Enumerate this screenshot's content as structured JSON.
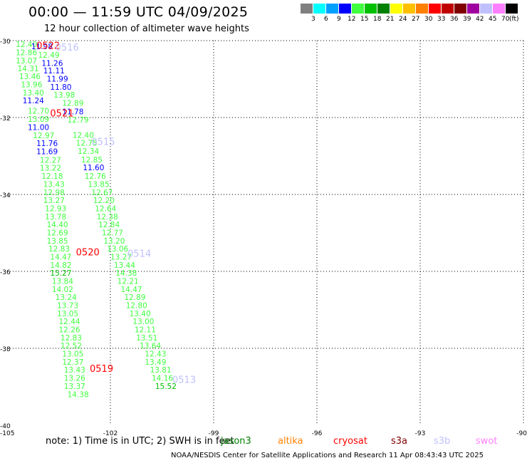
{
  "title": "00:00 — 11:59 UTC 04/09/2025",
  "subtitle": "12 hour collection of altimeter wave heights",
  "legend": {
    "unit": "(ft)",
    "swatches": [
      {
        "color": "#808080",
        "label": "3"
      },
      {
        "color": "#00ffff",
        "label": "6"
      },
      {
        "color": "#00a0ff",
        "label": "9"
      },
      {
        "color": "#0000ff",
        "label": "12"
      },
      {
        "color": "#40ff40",
        "label": "15"
      },
      {
        "color": "#00c000",
        "label": "18"
      },
      {
        "color": "#008000",
        "label": "21"
      },
      {
        "color": "#ffff00",
        "label": "24"
      },
      {
        "color": "#ffc000",
        "label": "27"
      },
      {
        "color": "#ff8000",
        "label": "30"
      },
      {
        "color": "#ff0000",
        "label": "33"
      },
      {
        "color": "#c00000",
        "label": "36"
      },
      {
        "color": "#800000",
        "label": "39"
      },
      {
        "color": "#a000a0",
        "label": "42"
      },
      {
        "color": "#c0c0ff",
        "label": "45"
      },
      {
        "color": "#ff80ff",
        "label": "70"
      },
      {
        "color": "#000000",
        "label": ""
      }
    ]
  },
  "axes": {
    "lon_min": -105,
    "lon_max": -90,
    "lat_min": -40,
    "lat_max": -30,
    "lon_ticks": [
      {
        "v": -105,
        "label": "-105"
      },
      {
        "v": -102,
        "label": "-102"
      },
      {
        "v": -99,
        "label": "-99"
      },
      {
        "v": -96,
        "label": "-96"
      },
      {
        "v": -93,
        "label": "-93"
      },
      {
        "v": -90,
        "label": "-90"
      }
    ],
    "lat_ticks": [
      {
        "v": -30,
        "label": "-30"
      },
      {
        "v": -32,
        "label": "-32"
      },
      {
        "v": -34,
        "label": "-34"
      },
      {
        "v": -36,
        "label": "-36"
      },
      {
        "v": -38,
        "label": "-38"
      },
      {
        "v": -40,
        "label": "-40"
      }
    ]
  },
  "points": [
    {
      "lon": -104.75,
      "lat": -30.09,
      "v": "12.40",
      "c": "#40ff40"
    },
    {
      "lon": -104.3,
      "lat": -30.15,
      "v": "11.98",
      "c": "#0000ff"
    },
    {
      "lon": -104.75,
      "lat": -30.31,
      "v": "12.86",
      "c": "#40ff40"
    },
    {
      "lon": -104.1,
      "lat": -30.37,
      "v": "12.49",
      "c": "#40ff40"
    },
    {
      "lon": -104.75,
      "lat": -30.52,
      "v": "13.07",
      "c": "#40ff40"
    },
    {
      "lon": -104.0,
      "lat": -30.58,
      "v": "11.26",
      "c": "#0000ff"
    },
    {
      "lon": -104.7,
      "lat": -30.72,
      "v": "14.31",
      "c": "#40ff40"
    },
    {
      "lon": -103.95,
      "lat": -30.78,
      "v": "11.11",
      "c": "#0000ff"
    },
    {
      "lon": -104.65,
      "lat": -30.93,
      "v": "13.46",
      "c": "#40ff40"
    },
    {
      "lon": -103.85,
      "lat": -30.99,
      "v": "11.99",
      "c": "#0000ff"
    },
    {
      "lon": -104.6,
      "lat": -31.14,
      "v": "13.96",
      "c": "#40ff40"
    },
    {
      "lon": -103.75,
      "lat": -31.2,
      "v": "11.80",
      "c": "#0000ff"
    },
    {
      "lon": -104.55,
      "lat": -31.35,
      "v": "13.40",
      "c": "#40ff40"
    },
    {
      "lon": -103.65,
      "lat": -31.41,
      "v": "13.98",
      "c": "#40ff40"
    },
    {
      "lon": -104.55,
      "lat": -31.56,
      "v": "11.24",
      "c": "#0000ff"
    },
    {
      "lon": -103.4,
      "lat": -31.62,
      "v": "12.89",
      "c": "#40ff40"
    },
    {
      "lon": -104.4,
      "lat": -31.82,
      "v": "12.70",
      "c": "#40ff40"
    },
    {
      "lon": -103.4,
      "lat": -31.84,
      "v": "11.78",
      "c": "#0000ff"
    },
    {
      "lon": -103.25,
      "lat": -32.06,
      "v": "12.79",
      "c": "#40ff40"
    },
    {
      "lon": -104.4,
      "lat": -32.04,
      "v": "13.09",
      "c": "#40ff40"
    },
    {
      "lon": -104.4,
      "lat": -32.25,
      "v": "11.00",
      "c": "#0000ff"
    },
    {
      "lon": -103.1,
      "lat": -32.45,
      "v": "12.40",
      "c": "#40ff40"
    },
    {
      "lon": -104.25,
      "lat": -32.46,
      "v": "12.97",
      "c": "#40ff40"
    },
    {
      "lon": -103.0,
      "lat": -32.66,
      "v": "12.75",
      "c": "#40ff40"
    },
    {
      "lon": -104.15,
      "lat": -32.67,
      "v": "11.76",
      "c": "#0000ff"
    },
    {
      "lon": -102.95,
      "lat": -32.87,
      "v": "12.34",
      "c": "#40ff40"
    },
    {
      "lon": -104.15,
      "lat": -32.88,
      "v": "11.69",
      "c": "#0000ff"
    },
    {
      "lon": -102.85,
      "lat": -33.09,
      "v": "12.85",
      "c": "#40ff40"
    },
    {
      "lon": -104.05,
      "lat": -33.1,
      "v": "12.27",
      "c": "#40ff40"
    },
    {
      "lon": -102.8,
      "lat": -33.3,
      "v": "11.60",
      "c": "#0000ff"
    },
    {
      "lon": -104.05,
      "lat": -33.31,
      "v": "13.22",
      "c": "#40ff40"
    },
    {
      "lon": -102.75,
      "lat": -33.52,
      "v": "12.76",
      "c": "#40ff40"
    },
    {
      "lon": -104.0,
      "lat": -33.52,
      "v": "12.18",
      "c": "#40ff40"
    },
    {
      "lon": -102.65,
      "lat": -33.73,
      "v": "13.85",
      "c": "#40ff40"
    },
    {
      "lon": -103.95,
      "lat": -33.73,
      "v": "13.43",
      "c": "#40ff40"
    },
    {
      "lon": -102.55,
      "lat": -33.94,
      "v": "12.67",
      "c": "#40ff40"
    },
    {
      "lon": -103.95,
      "lat": -33.94,
      "v": "12.98",
      "c": "#40ff40"
    },
    {
      "lon": -102.5,
      "lat": -34.15,
      "v": "12.20",
      "c": "#40ff40"
    },
    {
      "lon": -103.95,
      "lat": -34.15,
      "v": "13.27",
      "c": "#40ff40"
    },
    {
      "lon": -102.45,
      "lat": -34.36,
      "v": "12.64",
      "c": "#40ff40"
    },
    {
      "lon": -103.9,
      "lat": -34.36,
      "v": "12.93",
      "c": "#40ff40"
    },
    {
      "lon": -102.4,
      "lat": -34.57,
      "v": "12.38",
      "c": "#40ff40"
    },
    {
      "lon": -103.9,
      "lat": -34.57,
      "v": "13.78",
      "c": "#40ff40"
    },
    {
      "lon": -102.35,
      "lat": -34.78,
      "v": "12.84",
      "c": "#40ff40"
    },
    {
      "lon": -103.85,
      "lat": -34.78,
      "v": "14.40",
      "c": "#40ff40"
    },
    {
      "lon": -102.25,
      "lat": -34.99,
      "v": "12.77",
      "c": "#40ff40"
    },
    {
      "lon": -103.85,
      "lat": -34.99,
      "v": "12.69",
      "c": "#40ff40"
    },
    {
      "lon": -102.2,
      "lat": -35.2,
      "v": "13.20",
      "c": "#40ff40"
    },
    {
      "lon": -103.85,
      "lat": -35.2,
      "v": "13.85",
      "c": "#40ff40"
    },
    {
      "lon": -102.1,
      "lat": -35.41,
      "v": "13.06",
      "c": "#40ff40"
    },
    {
      "lon": -103.8,
      "lat": -35.41,
      "v": "12.83",
      "c": "#40ff40"
    },
    {
      "lon": -103.75,
      "lat": -35.62,
      "v": "14.47",
      "c": "#40ff40"
    },
    {
      "lon": -102.0,
      "lat": -35.62,
      "v": "13.27",
      "c": "#40ff40"
    },
    {
      "lon": -103.75,
      "lat": -35.83,
      "v": "14.82",
      "c": "#40ff40"
    },
    {
      "lon": -101.9,
      "lat": -35.83,
      "v": "13.44",
      "c": "#40ff40"
    },
    {
      "lon": -103.75,
      "lat": -36.04,
      "v": "15.27",
      "c": "#00c000"
    },
    {
      "lon": -101.85,
      "lat": -36.04,
      "v": "14.38",
      "c": "#40ff40"
    },
    {
      "lon": -103.7,
      "lat": -36.25,
      "v": "13.84",
      "c": "#40ff40"
    },
    {
      "lon": -101.8,
      "lat": -36.25,
      "v": "12.21",
      "c": "#40ff40"
    },
    {
      "lon": -103.7,
      "lat": -36.46,
      "v": "14.02",
      "c": "#40ff40"
    },
    {
      "lon": -101.7,
      "lat": -36.46,
      "v": "14.47",
      "c": "#40ff40"
    },
    {
      "lon": -103.6,
      "lat": -36.67,
      "v": "13.24",
      "c": "#40ff40"
    },
    {
      "lon": -101.6,
      "lat": -36.67,
      "v": "12.89",
      "c": "#40ff40"
    },
    {
      "lon": -103.55,
      "lat": -36.88,
      "v": "13.73",
      "c": "#40ff40"
    },
    {
      "lon": -101.55,
      "lat": -36.88,
      "v": "12.80",
      "c": "#40ff40"
    },
    {
      "lon": -103.55,
      "lat": -37.09,
      "v": "13.05",
      "c": "#40ff40"
    },
    {
      "lon": -101.45,
      "lat": -37.09,
      "v": "13.40",
      "c": "#40ff40"
    },
    {
      "lon": -103.5,
      "lat": -37.3,
      "v": "12.44",
      "c": "#40ff40"
    },
    {
      "lon": -101.35,
      "lat": -37.3,
      "v": "13.00",
      "c": "#40ff40"
    },
    {
      "lon": -103.5,
      "lat": -37.51,
      "v": "12.26",
      "c": "#40ff40"
    },
    {
      "lon": -101.3,
      "lat": -37.51,
      "v": "12.11",
      "c": "#40ff40"
    },
    {
      "lon": -103.45,
      "lat": -37.72,
      "v": "12.83",
      "c": "#40ff40"
    },
    {
      "lon": -101.25,
      "lat": -37.72,
      "v": "13.51",
      "c": "#40ff40"
    },
    {
      "lon": -103.45,
      "lat": -37.93,
      "v": "12.52",
      "c": "#40ff40"
    },
    {
      "lon": -101.15,
      "lat": -37.93,
      "v": "13.64",
      "c": "#40ff40"
    },
    {
      "lon": -103.4,
      "lat": -38.14,
      "v": "13.05",
      "c": "#40ff40"
    },
    {
      "lon": -101.0,
      "lat": -38.14,
      "v": "12.43",
      "c": "#40ff40"
    },
    {
      "lon": -103.4,
      "lat": -38.35,
      "v": "12.37",
      "c": "#40ff40"
    },
    {
      "lon": -101.0,
      "lat": -38.35,
      "v": "13.49",
      "c": "#40ff40"
    },
    {
      "lon": -103.35,
      "lat": -38.56,
      "v": "13.43",
      "c": "#40ff40"
    },
    {
      "lon": -100.85,
      "lat": -38.56,
      "v": "13.81",
      "c": "#40ff40"
    },
    {
      "lon": -103.35,
      "lat": -38.77,
      "v": "13.26",
      "c": "#40ff40"
    },
    {
      "lon": -100.8,
      "lat": -38.77,
      "v": "14.16",
      "c": "#40ff40"
    },
    {
      "lon": -103.35,
      "lat": -38.98,
      "v": "13.37",
      "c": "#40ff40"
    },
    {
      "lon": -100.7,
      "lat": -38.98,
      "v": "15.52",
      "c": "#00c000"
    },
    {
      "lon": -103.25,
      "lat": -39.19,
      "v": "14.38",
      "c": "#40ff40"
    }
  ],
  "pass_labels": [
    {
      "lon": -104.15,
      "lat": -30.12,
      "text": "0522",
      "c": "#ff0000"
    },
    {
      "lon": -103.6,
      "lat": -30.17,
      "text": "0516",
      "c": "#c0c0ff"
    },
    {
      "lon": -103.75,
      "lat": -31.88,
      "text": "0521",
      "c": "#ff0000"
    },
    {
      "lon": -102.55,
      "lat": -32.62,
      "text": "0515",
      "c": "#c0c0ff"
    },
    {
      "lon": -103.0,
      "lat": -35.49,
      "text": "0520",
      "c": "#ff0000"
    },
    {
      "lon": -101.5,
      "lat": -35.53,
      "text": "0514",
      "c": "#c0c0ff"
    },
    {
      "lon": -102.6,
      "lat": -38.52,
      "text": "0519",
      "c": "#ff0000"
    },
    {
      "lon": -100.2,
      "lat": -38.81,
      "text": "0513",
      "c": "#c0c0ff"
    }
  ],
  "footer": {
    "note": "note:  1) Time is in UTC; 2) SWH is in feet",
    "satellites": [
      {
        "name": "jason3",
        "c": "#008000"
      },
      {
        "name": "altika",
        "c": "#ff8000"
      },
      {
        "name": "cryosat",
        "c": "#ff0000"
      },
      {
        "name": "s3a",
        "c": "#800000"
      },
      {
        "name": "s3b",
        "c": "#c0c0ff"
      },
      {
        "name": "swot",
        "c": "#ff80ff"
      }
    ],
    "credit": "NOAA/NESDIS Center for Satellite Applications and Research     11 Apr 08:43:43 UTC 2025"
  }
}
